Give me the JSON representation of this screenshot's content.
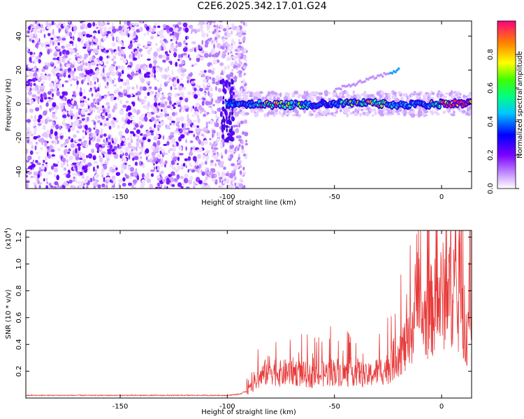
{
  "title": "C2E6.2025.342.17.01.G24",
  "chart_data": [
    {
      "type": "heatmap",
      "title": "C2E6.2025.342.17.01.G24",
      "xlabel": "Height of straight line (km)",
      "ylabel": "Frequency (Hz)",
      "xlim": [
        -194,
        14
      ],
      "ylim": [
        -50,
        49
      ],
      "xticks": [
        -150,
        -100,
        -50,
        0
      ],
      "xtick_labels": [
        "-150",
        "-100",
        "-50",
        "0"
      ],
      "yticks": [
        -40,
        -20,
        0,
        20,
        40
      ],
      "ytick_labels": [
        "-40",
        "-20",
        "0",
        "20",
        "40"
      ],
      "colorbar": {
        "label": "Normalized spectral amplitude",
        "range": [
          0,
          1
        ],
        "ticks": [
          0.0,
          0.2,
          0.4,
          0.6,
          0.8
        ],
        "tick_labels": [
          "0.0",
          "0.2",
          "0.4",
          "0.6",
          "0.8"
        ]
      },
      "description_points": {
        "noise_region_x": [
          -194,
          -95
        ],
        "ridge_x_start": -100,
        "ridge_freq": 0,
        "secondary_ridge": {
          "x": [
            -50,
            -20
          ],
          "freq": [
            8,
            20
          ]
        }
      }
    },
    {
      "type": "line",
      "xlabel": "Height of straight line (km)",
      "ylabel": "SNR (10 * v/v)",
      "scale_note": "(x10",
      "scale_exp": "4",
      "scale_close": ")",
      "xlim": [
        -194,
        14
      ],
      "ylim": [
        0,
        1.25
      ],
      "xticks": [
        -150,
        -100,
        -50,
        0
      ],
      "xtick_labels": [
        "-150",
        "-100",
        "-50",
        "0"
      ],
      "yticks": [
        0.2,
        0.4,
        0.6,
        0.8,
        1.0,
        1.2
      ],
      "ytick_labels": [
        "0.2",
        "0.4",
        "0.6",
        "0.8",
        "1.0",
        "1.2"
      ],
      "series": [
        {
          "name": "SNR",
          "color": "#e83a3a",
          "x": [
            -194,
            -180,
            -160,
            -140,
            -120,
            -100,
            -94,
            -90,
            -85,
            -80,
            -75,
            -70,
            -65,
            -60,
            -55,
            -50,
            -45,
            -40,
            -35,
            -30,
            -25,
            -20,
            -15,
            -12,
            -11,
            -10,
            -8,
            -5,
            -2,
            0,
            3,
            6,
            8,
            9,
            10,
            11,
            12,
            13,
            14
          ],
          "values": [
            0.02,
            0.02,
            0.02,
            0.02,
            0.02,
            0.02,
            0.03,
            0.06,
            0.15,
            0.22,
            0.18,
            0.2,
            0.18,
            0.16,
            0.18,
            0.2,
            0.18,
            0.2,
            0.16,
            0.2,
            0.22,
            0.35,
            0.4,
            0.7,
            1.25,
            0.55,
            0.6,
            0.65,
            0.7,
            0.75,
            0.8,
            0.85,
            0.6,
            1.15,
            0.7,
            0.2,
            0.45,
            0.95,
            0.9
          ]
        }
      ]
    }
  ]
}
